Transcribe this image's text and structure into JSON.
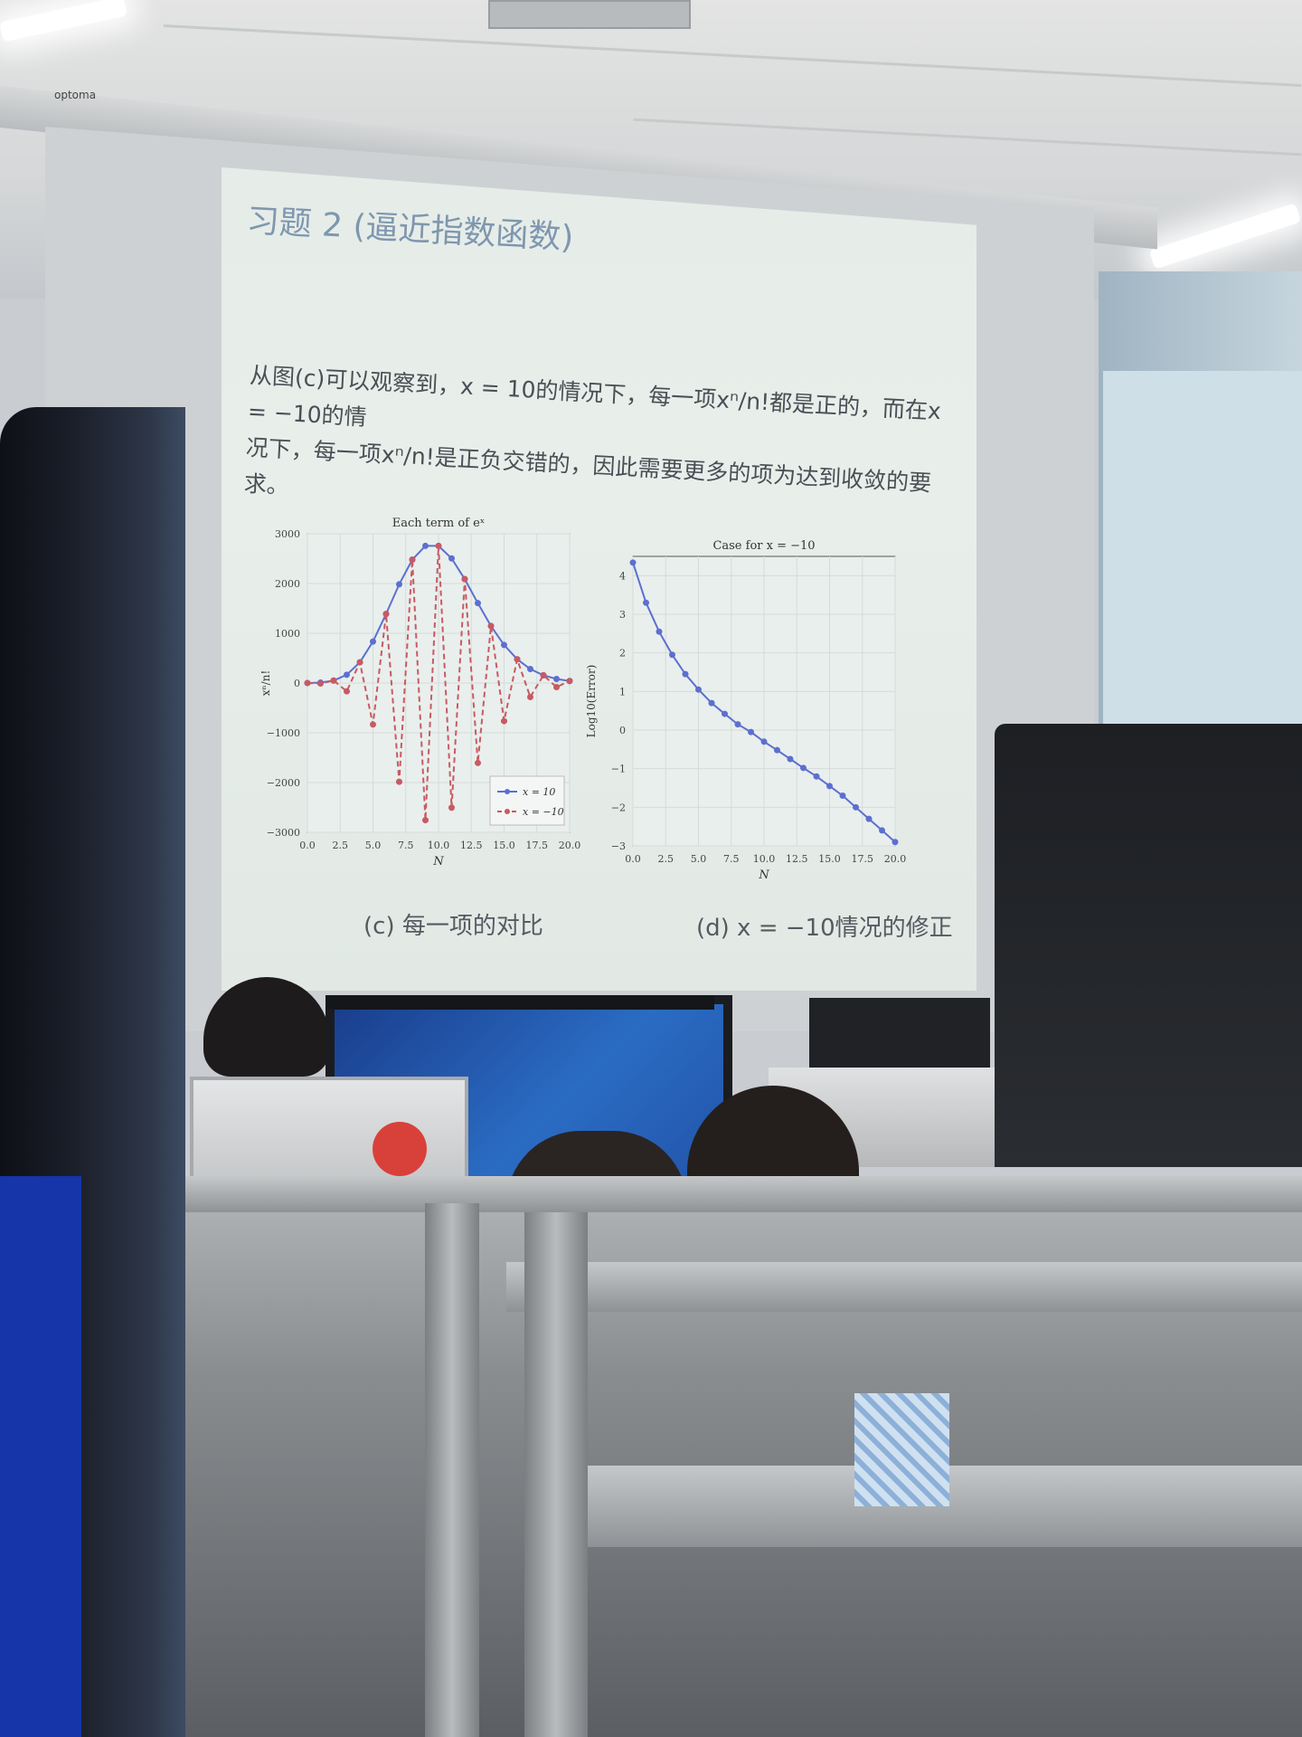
{
  "scene": {
    "projector_brand": "optoma",
    "accent_title_color": "#7f97ae",
    "series_colors": {
      "positive": "#5d6fcf",
      "negative": "#c85a62"
    }
  },
  "slide": {
    "title": "习题 2 (逼近指数函数)",
    "body_line1": "从图(c)可以观察到，x = 10的情况下，每一项xⁿ/n!都是正的，而在x = −10的情",
    "body_line2": "况下，每一项xⁿ/n!是正负交错的，因此需要更多的项为达到收敛的要求。",
    "caption_c": "(c) 每一项的对比",
    "caption_d": "(d) x = −10情况的修正"
  },
  "chart_data": [
    {
      "type": "line",
      "title": "Each term of eˣ",
      "xlabel": "N",
      "ylabel": "xⁿ/n!",
      "xlim": [
        0,
        20
      ],
      "ylim": [
        -3000,
        3000
      ],
      "xticks": [
        "0.0",
        "2.5",
        "5.0",
        "7.5",
        "10.0",
        "12.5",
        "15.0",
        "17.5",
        "20.0"
      ],
      "yticks": [
        "3000",
        "2000",
        "1000",
        "0",
        "−1000",
        "−2000",
        "−3000"
      ],
      "legend_position": "bottom-right",
      "x": [
        0,
        1,
        2,
        3,
        4,
        5,
        6,
        7,
        8,
        9,
        10,
        11,
        12,
        13,
        14,
        15,
        16,
        17,
        18,
        19,
        20
      ],
      "series": [
        {
          "name": "x = 10",
          "color": "#5d6fcf",
          "style": "solid",
          "values": [
            1,
            10,
            50,
            167,
            417,
            833,
            1389,
            1984,
            2480,
            2756,
            2756,
            2505,
            2088,
            1606,
            1147,
            765,
            478,
            281,
            156,
            82,
            41
          ]
        },
        {
          "name": "x = −10",
          "color": "#c85a62",
          "style": "dashed",
          "values": [
            1,
            -10,
            50,
            -167,
            417,
            -833,
            1389,
            -1984,
            2480,
            -2756,
            2756,
            -2505,
            2088,
            -1606,
            1147,
            -765,
            478,
            -281,
            156,
            -82,
            41
          ]
        }
      ]
    },
    {
      "type": "line",
      "title": "Case for x = −10",
      "xlabel": "N",
      "ylabel": "Log10(Error)",
      "xlim": [
        0,
        20
      ],
      "ylim": [
        -3,
        4.5
      ],
      "xticks": [
        "0.0",
        "2.5",
        "5.0",
        "7.5",
        "10.0",
        "12.5",
        "15.0",
        "17.5",
        "20.0"
      ],
      "yticks": [
        "4",
        "3",
        "2",
        "1",
        "0",
        "−1",
        "−2",
        "−3"
      ],
      "x": [
        0,
        1,
        2,
        3,
        4,
        5,
        6,
        7,
        8,
        9,
        10,
        11,
        12,
        13,
        14,
        15,
        16,
        17,
        18,
        19,
        20
      ],
      "series": [
        {
          "color": "#5d6fcf",
          "style": "solid",
          "values": [
            4.34,
            3.3,
            2.55,
            1.95,
            1.45,
            1.05,
            0.7,
            0.42,
            0.15,
            -0.05,
            -0.3,
            -0.52,
            -0.75,
            -0.98,
            -1.2,
            -1.45,
            -1.7,
            -2.0,
            -2.3,
            -2.6,
            -2.9
          ]
        }
      ]
    }
  ]
}
